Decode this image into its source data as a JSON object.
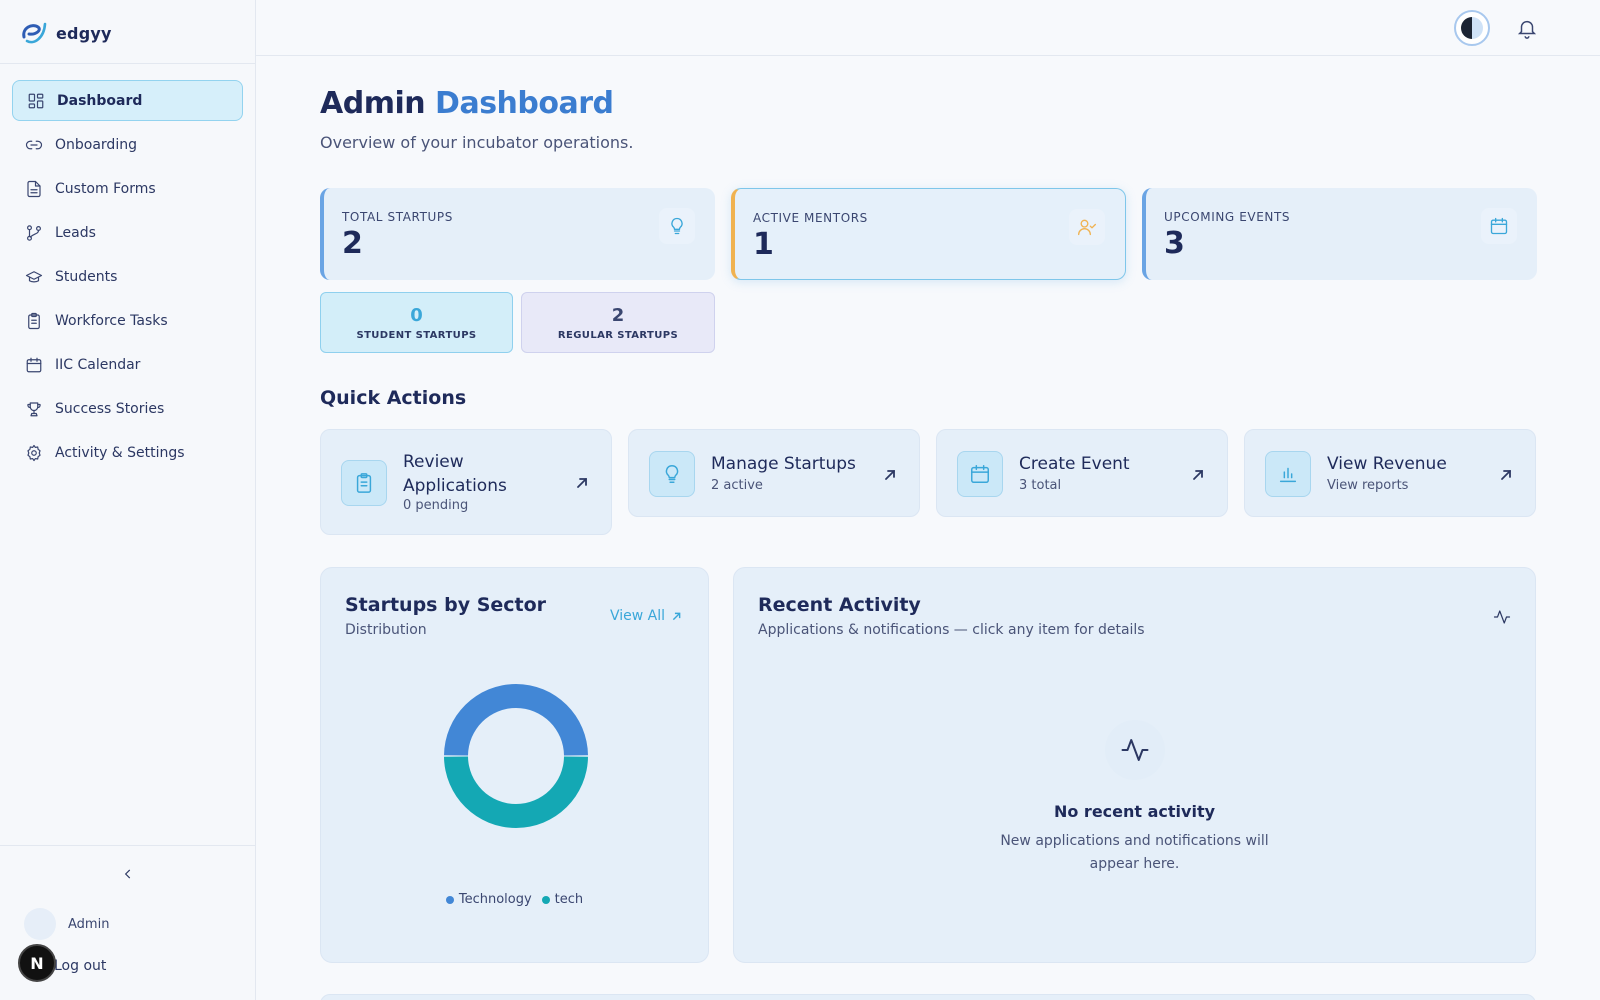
{
  "app": {
    "name": "edgyy"
  },
  "sidebar": {
    "items": [
      {
        "label": "Dashboard",
        "icon": "dashboard-icon",
        "active": true
      },
      {
        "label": "Onboarding",
        "icon": "link-icon"
      },
      {
        "label": "Custom Forms",
        "icon": "file-text-icon"
      },
      {
        "label": "Leads",
        "icon": "git-branch-icon"
      },
      {
        "label": "Students",
        "icon": "graduation-cap-icon"
      },
      {
        "label": "Workforce Tasks",
        "icon": "clipboard-icon"
      },
      {
        "label": "IIC Calendar",
        "icon": "calendar-icon"
      },
      {
        "label": "Success Stories",
        "icon": "trophy-icon"
      },
      {
        "label": "Activity & Settings",
        "icon": "gear-icon"
      }
    ],
    "user": {
      "name": "Admin"
    },
    "logout_label": "Log out",
    "badge_letter": "N"
  },
  "page": {
    "title_main": "Admin",
    "title_accent": "Dashboard",
    "subtitle": "Overview of your incubator operations."
  },
  "stats": [
    {
      "label": "TOTAL STARTUPS",
      "value": "2",
      "icon": "lightbulb-icon",
      "icon_color": "#3aa7d9"
    },
    {
      "label": "ACTIVE MENTORS",
      "value": "1",
      "icon": "user-check-icon",
      "icon_color": "#f0b250"
    },
    {
      "label": "UPCOMING EVENTS",
      "value": "3",
      "icon": "calendar-icon",
      "icon_color": "#3aa7d9"
    }
  ],
  "startup_split": [
    {
      "value": "0",
      "label": "STUDENT STARTUPS",
      "color": "#3aa7d9"
    },
    {
      "value": "2",
      "label": "REGULAR STARTUPS",
      "color": "#3a4670"
    }
  ],
  "quick_actions": {
    "title": "Quick Actions",
    "items": [
      {
        "title": "Review Applications",
        "sub": "0 pending",
        "icon": "clipboard-icon"
      },
      {
        "title": "Manage Startups",
        "sub": "2 active",
        "icon": "lightbulb-icon"
      },
      {
        "title": "Create Event",
        "sub": "3 total",
        "icon": "calendar-icon"
      },
      {
        "title": "View Revenue",
        "sub": "View reports",
        "icon": "bar-chart-icon"
      }
    ]
  },
  "sector_panel": {
    "title": "Startups by Sector",
    "subtitle": "Distribution",
    "view_all": "View All"
  },
  "activity_panel": {
    "title": "Recent Activity",
    "subtitle": "Applications & notifications — click any item for details",
    "empty_title": "No recent activity",
    "empty_text": "New applications and notifications will appear here."
  },
  "chart_data": {
    "type": "pie",
    "donut": true,
    "categories": [
      "Technology",
      "tech"
    ],
    "values": [
      1,
      1
    ],
    "colors": [
      "#4287d6",
      "#14a8b4"
    ],
    "legend": "bottom"
  }
}
